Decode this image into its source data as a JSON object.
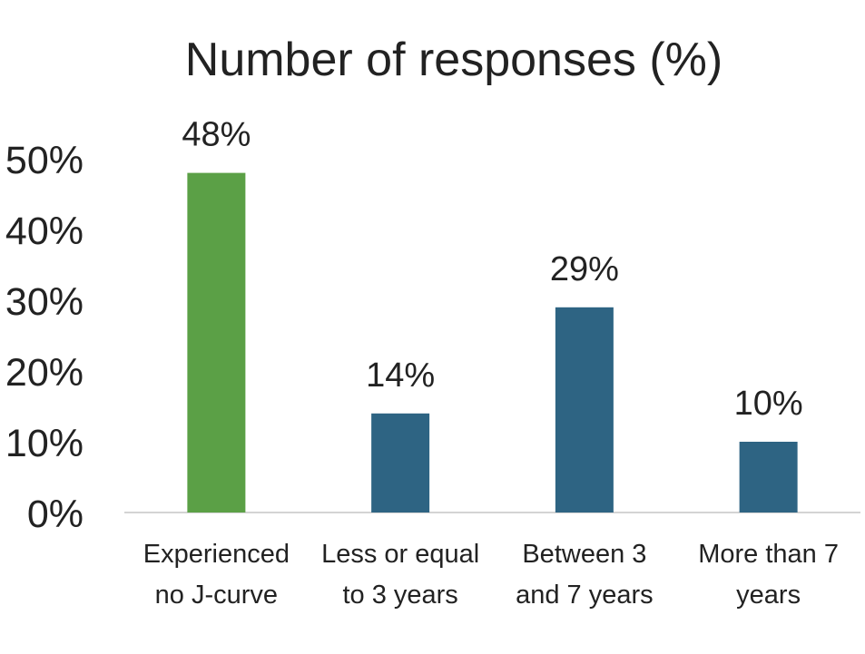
{
  "chart_data": {
    "type": "bar",
    "title": "Number of responses (%)",
    "categories": [
      [
        "Experienced",
        "no J-curve"
      ],
      [
        "Less or equal",
        "to 3 years"
      ],
      [
        "Between 3",
        "and 7 years"
      ],
      [
        "More than 7",
        "years"
      ]
    ],
    "values": [
      48,
      14,
      29,
      10
    ],
    "data_labels": [
      "48%",
      "14%",
      "29%",
      "10%"
    ],
    "bar_colors": [
      "#5ba046",
      "#2e6483",
      "#2e6483",
      "#2e6483"
    ],
    "y_ticks": [
      "0%",
      "10%",
      "20%",
      "30%",
      "40%",
      "50%"
    ],
    "ylim": [
      0,
      50
    ],
    "xlabel": "",
    "ylabel": "",
    "grid": false,
    "legend": "none"
  }
}
